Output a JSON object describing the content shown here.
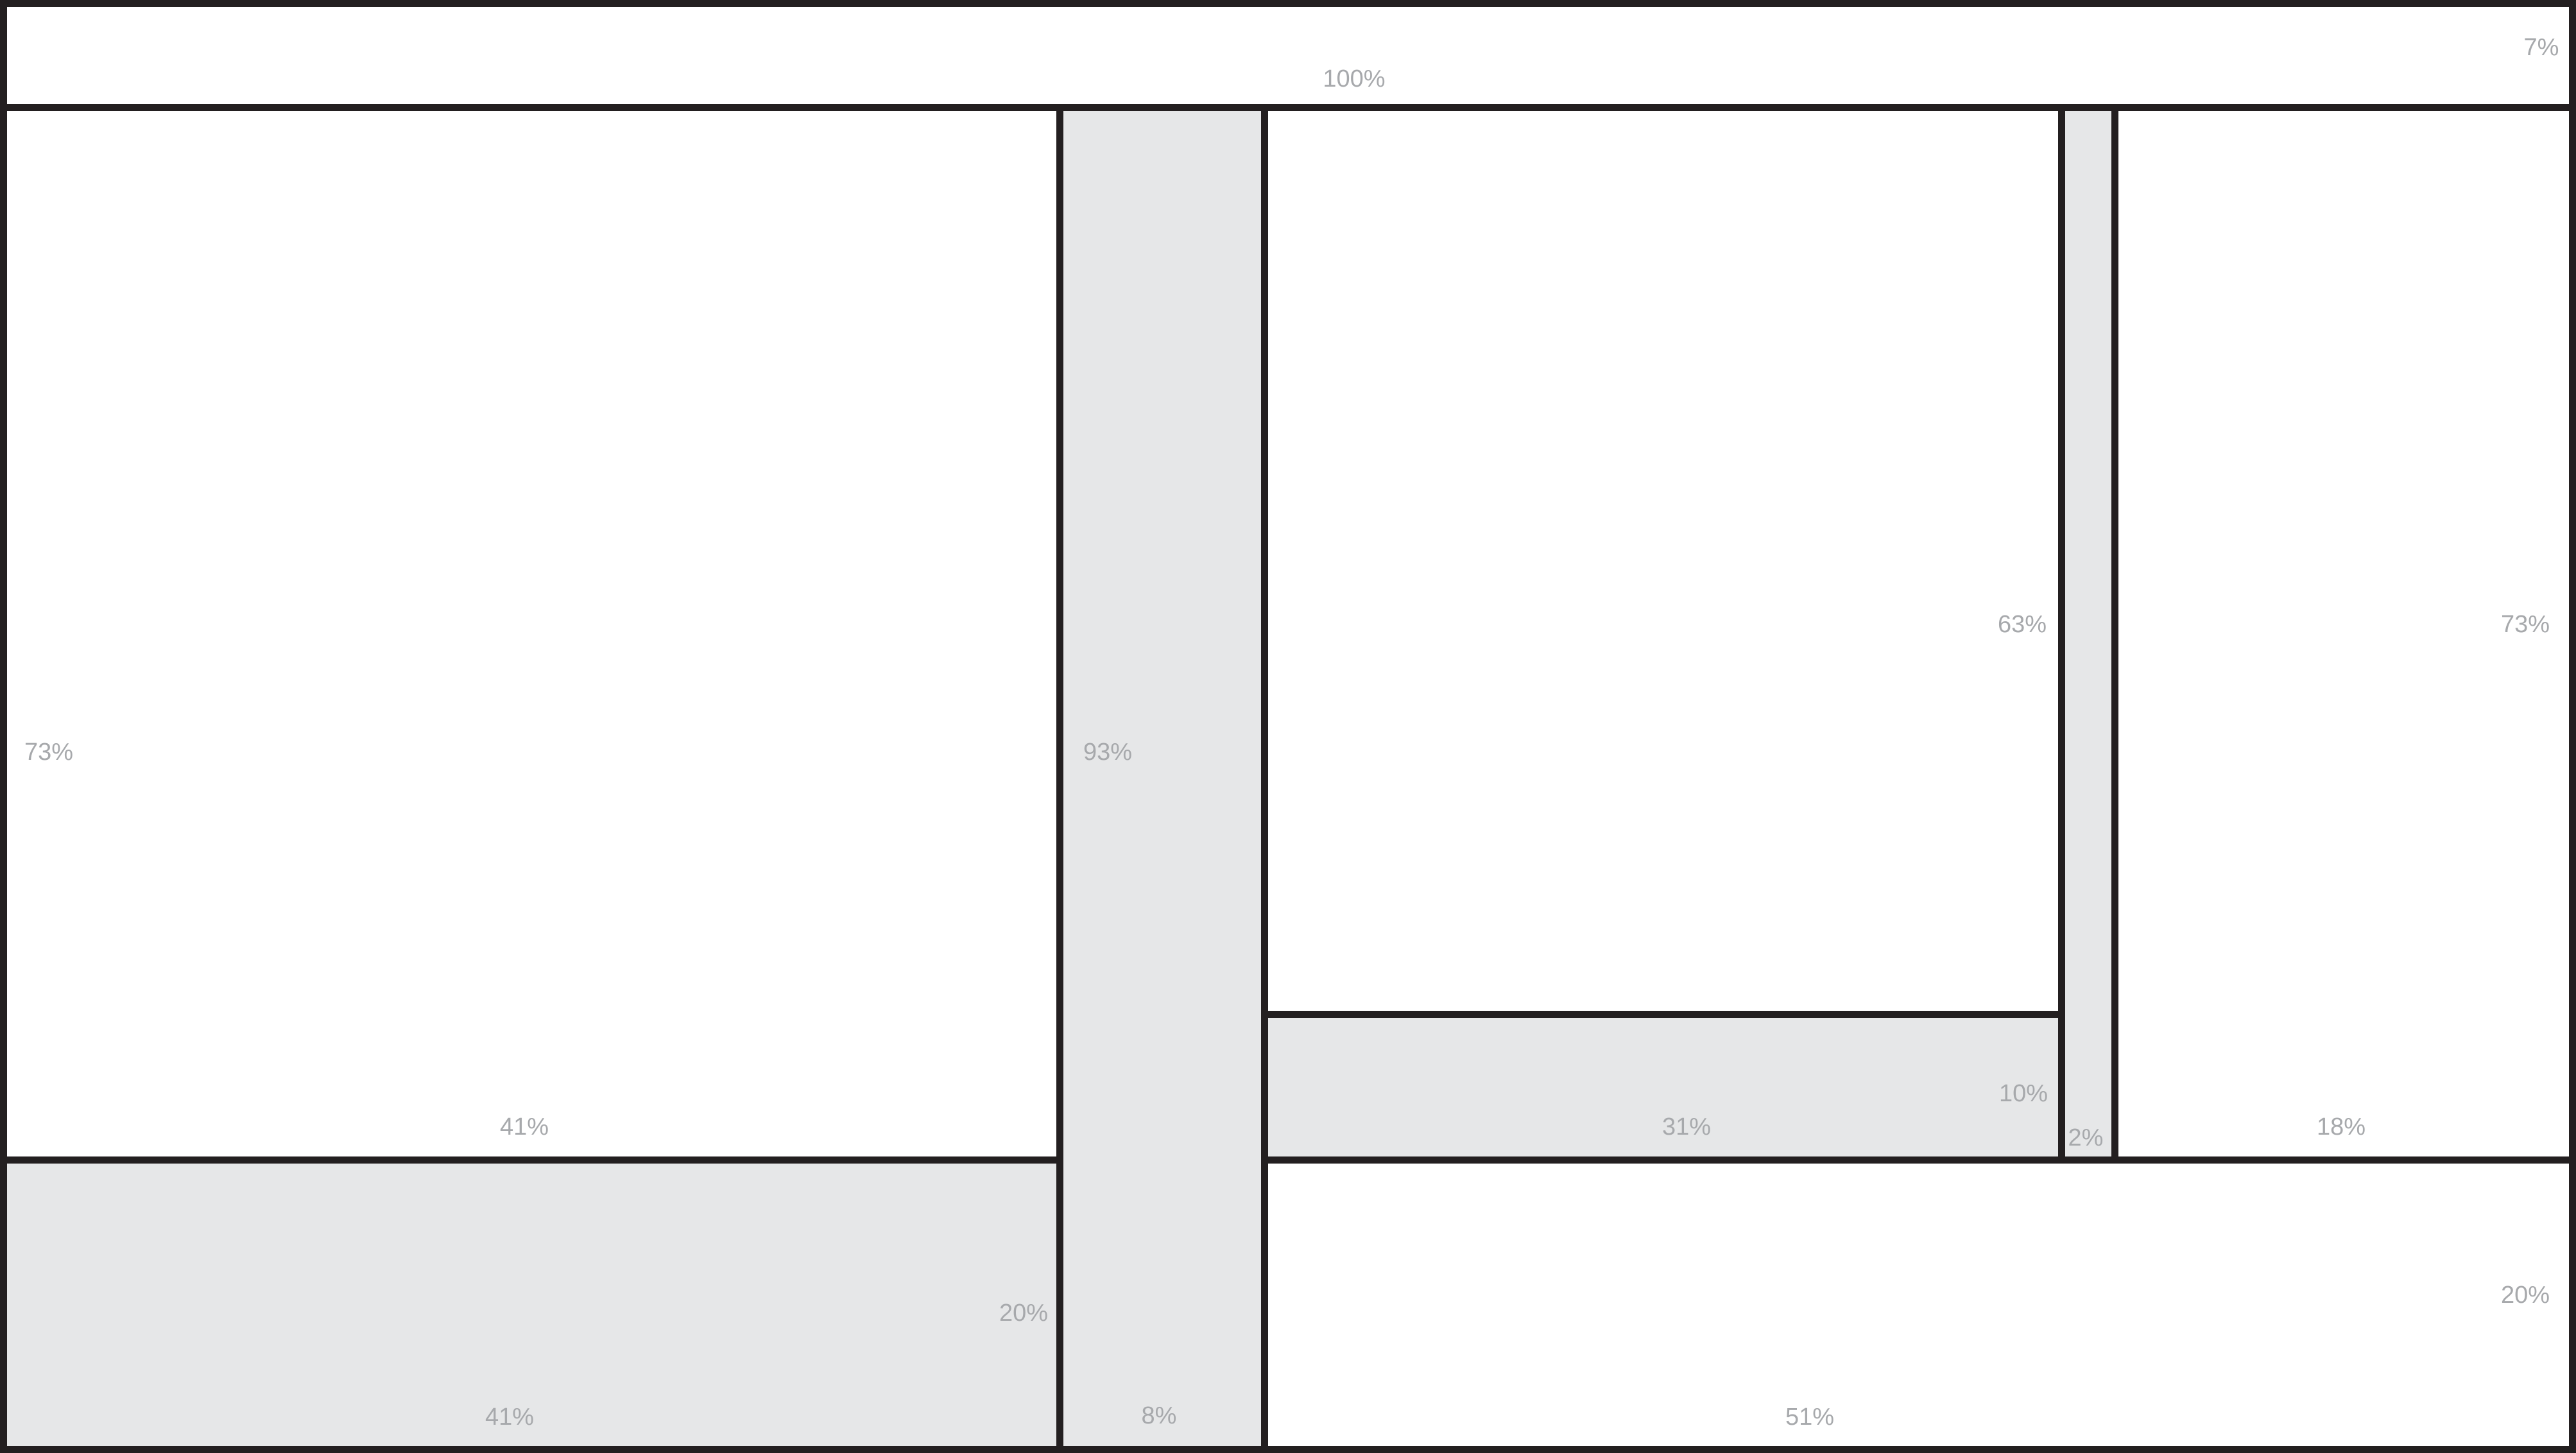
{
  "colors": {
    "border": "#231f20",
    "label": "#a7a9ac",
    "white_panel": "#ffffff",
    "gray_panel": "#e6e7e8"
  },
  "labels": {
    "top_height": "7%",
    "top_width": "100%",
    "a_height": "73%",
    "a_width": "41%",
    "b_height": "20%",
    "b_width": "41%",
    "c_height": "93%",
    "c_width": "8%",
    "d_height": "63%",
    "e_height": "10%",
    "e_width": "31%",
    "f_width": "2%",
    "g_height": "73%",
    "g_width": "18%",
    "h_height": "20%",
    "h_width": "51%"
  }
}
